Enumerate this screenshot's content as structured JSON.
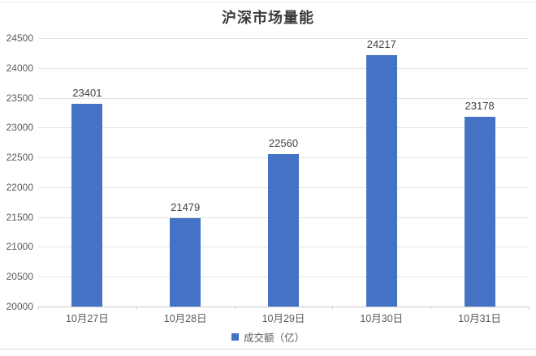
{
  "page": {
    "title": "沪深市场量能"
  },
  "chart_data": {
    "type": "bar",
    "title": "沪深市场量能",
    "categories": [
      "10月27日",
      "10月28日",
      "10月29日",
      "10月30日",
      "10月31日"
    ],
    "series": [
      {
        "name": "成交额（亿）",
        "values": [
          23401,
          21479,
          22560,
          24217,
          23178
        ]
      }
    ],
    "xlabel": "",
    "ylabel": "",
    "ylim": [
      20000,
      24500
    ],
    "ytick_step": 500,
    "yticks": [
      20000,
      20500,
      21000,
      21500,
      22000,
      22500,
      23000,
      23500,
      24000,
      24500
    ],
    "grid": "horizontal",
    "data_labels": true,
    "legend_position": "bottom",
    "bar_color": "#4472c4",
    "gridline_color": "#e3e3e3",
    "axis_line_color": "#c9c9c9",
    "axis_text_color": "#595959",
    "label_text_color": "#3f3f3f"
  }
}
